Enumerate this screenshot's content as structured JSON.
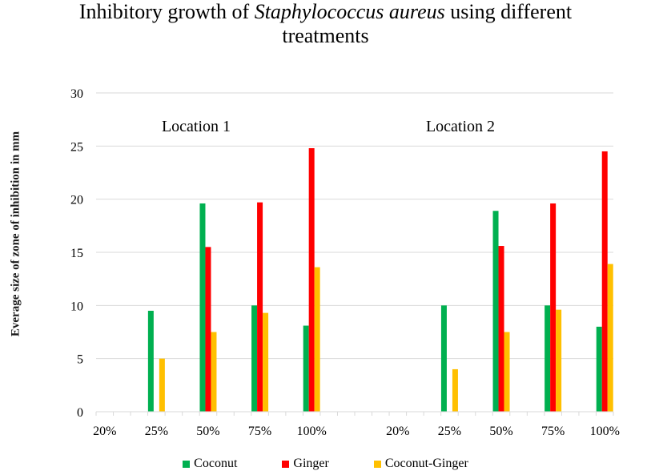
{
  "chart_data": {
    "type": "bar",
    "title_pre": "Inhibitory growth of ",
    "title_italic": "Staphylococcus aureus",
    "title_post": " using different",
    "title_line2": "treatments",
    "ylabel": "Everage size of zone of inhibition in mm",
    "xlabel": "",
    "ylim": [
      0,
      30
    ],
    "yticks": [
      "0",
      "5",
      "10",
      "15",
      "20",
      "25",
      "30"
    ],
    "grid": true,
    "legend_position": "bottom",
    "groups": [
      {
        "label": "Location 1",
        "categories": [
          "20%",
          "25%",
          "50%",
          "75%",
          "100%"
        ]
      },
      {
        "label": "Location 2",
        "categories": [
          "20%",
          "25%",
          "50%",
          "75%",
          "100%"
        ]
      }
    ],
    "series": [
      {
        "name": "Coconut",
        "color": "#00B050",
        "values": [
          [
            0,
            9.5,
            19.6,
            10.0,
            8.1
          ],
          [
            0,
            10.0,
            18.9,
            10.0,
            8.0
          ]
        ]
      },
      {
        "name": "Ginger",
        "color": "#FF0000",
        "values": [
          [
            0,
            0,
            15.5,
            19.7,
            24.8
          ],
          [
            0,
            0,
            15.6,
            19.6,
            24.5
          ]
        ]
      },
      {
        "name": "Coconut-Ginger",
        "color": "#FFC000",
        "values": [
          [
            0,
            5.0,
            7.5,
            9.3,
            13.6
          ],
          [
            0,
            4.0,
            7.5,
            9.6,
            13.9
          ]
        ]
      }
    ]
  }
}
